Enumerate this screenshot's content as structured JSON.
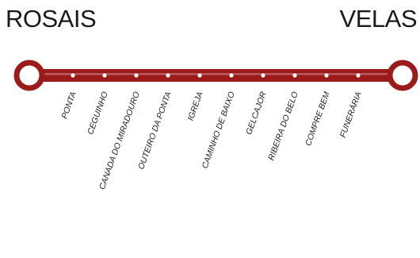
{
  "route": {
    "start_terminus": "ROSAIS",
    "end_terminus": "VELAS",
    "line_color": "#9b1b1b",
    "stops": [
      "PONTA",
      "CEGUINHO",
      "CANADA DO MIRADOURO",
      "OUTEIRO DA PONTA",
      "IGREJA",
      "CAMINHO DE BAIXO",
      "GELCAJOR",
      "RIBEIRA DO BELO",
      "COMPRE BEM",
      "FUNERÁRIA"
    ]
  }
}
